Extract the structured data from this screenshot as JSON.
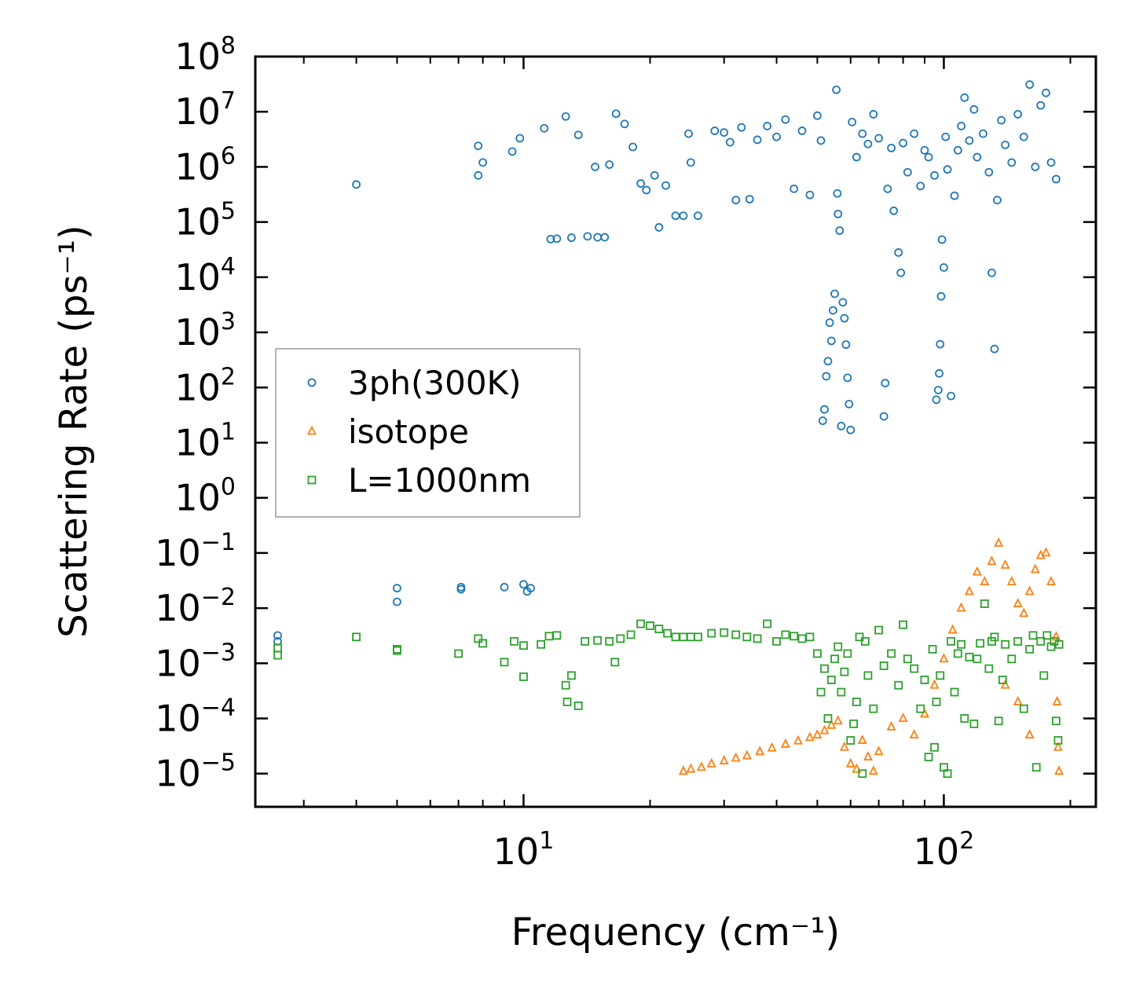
{
  "chart_data": {
    "type": "scatter",
    "xscale": "log",
    "yscale": "log",
    "xlim": [
      2.3,
      230
    ],
    "ylim": [
      2.5e-06,
      100000000
    ],
    "xlabel": "Frequency (cm⁻¹)",
    "ylabel": "Scattering Rate (ps⁻¹)",
    "xticks": [
      {
        "value": 10,
        "base": "10",
        "exp": "1"
      },
      {
        "value": 100,
        "base": "10",
        "exp": "2"
      }
    ],
    "yticks": [
      {
        "value": 1e-05,
        "base": "10",
        "exp": "−5"
      },
      {
        "value": 0.0001,
        "base": "10",
        "exp": "−4"
      },
      {
        "value": 0.001,
        "base": "10",
        "exp": "−3"
      },
      {
        "value": 0.01,
        "base": "10",
        "exp": "−2"
      },
      {
        "value": 0.1,
        "base": "10",
        "exp": "−1"
      },
      {
        "value": 1,
        "base": "10",
        "exp": "0"
      },
      {
        "value": 10,
        "base": "10",
        "exp": "1"
      },
      {
        "value": 100,
        "base": "10",
        "exp": "2"
      },
      {
        "value": 1000,
        "base": "10",
        "exp": "3"
      },
      {
        "value": 10000,
        "base": "10",
        "exp": "4"
      },
      {
        "value": 100000,
        "base": "10",
        "exp": "5"
      },
      {
        "value": 1000000,
        "base": "10",
        "exp": "6"
      },
      {
        "value": 10000000,
        "base": "10",
        "exp": "7"
      },
      {
        "value": 100000000,
        "base": "10",
        "exp": "8"
      }
    ],
    "legend": {
      "location": "center-left"
    },
    "series": [
      {
        "name": "3ph(300K)",
        "marker": "circle",
        "color": "#1f77b4",
        "points": [
          [
            2.6,
            0.0032
          ],
          [
            2.6,
            0.0025
          ],
          [
            4.0,
            480000
          ],
          [
            5.0,
            0.023
          ],
          [
            5.0,
            0.013
          ],
          [
            7.1,
            0.024
          ],
          [
            7.1,
            0.022
          ],
          [
            7.8,
            2400000
          ],
          [
            7.8,
            700000
          ],
          [
            8.0,
            1200000
          ],
          [
            9.0,
            0.024
          ],
          [
            9.4,
            1900000
          ],
          [
            9.8,
            3300000
          ],
          [
            10.0,
            0.027
          ],
          [
            10.2,
            0.02
          ],
          [
            10.4,
            0.023
          ],
          [
            11.2,
            5000000
          ],
          [
            11.6,
            49000
          ],
          [
            12.0,
            50000
          ],
          [
            12.6,
            8200000
          ],
          [
            13.0,
            52000
          ],
          [
            13.5,
            3800000
          ],
          [
            14.2,
            55000
          ],
          [
            14.8,
            1000000
          ],
          [
            15.0,
            53000
          ],
          [
            15.6,
            53000
          ],
          [
            16.0,
            1100000
          ],
          [
            16.6,
            9200000
          ],
          [
            17.4,
            6000000
          ],
          [
            18.2,
            2300000
          ],
          [
            19.0,
            500000
          ],
          [
            19.6,
            380000
          ],
          [
            20.5,
            700000
          ],
          [
            21.0,
            80000
          ],
          [
            21.8,
            460000
          ],
          [
            23.0,
            130000
          ],
          [
            24.0,
            130000
          ],
          [
            24.7,
            4000000
          ],
          [
            25.0,
            1200000
          ],
          [
            26.0,
            130000
          ],
          [
            28.5,
            4500000
          ],
          [
            30.0,
            4200000
          ],
          [
            31.0,
            2800000
          ],
          [
            32.0,
            250000
          ],
          [
            33.0,
            5200000
          ],
          [
            34.5,
            260000
          ],
          [
            36.0,
            3100000
          ],
          [
            38.0,
            5500000
          ],
          [
            40.0,
            3500000
          ],
          [
            42.0,
            7200000
          ],
          [
            44.0,
            400000
          ],
          [
            46.0,
            4500000
          ],
          [
            48.0,
            310000
          ],
          [
            50.0,
            8500000
          ],
          [
            51.0,
            3000000
          ],
          [
            51.5,
            25
          ],
          [
            52.0,
            40
          ],
          [
            52.5,
            160
          ],
          [
            53.0,
            300
          ],
          [
            53.5,
            1500
          ],
          [
            54.0,
            700
          ],
          [
            54.5,
            2500
          ],
          [
            55.0,
            5000
          ],
          [
            55.5,
            25000000
          ],
          [
            55.8,
            330000
          ],
          [
            56.0,
            140000
          ],
          [
            56.5,
            70000
          ],
          [
            57.0,
            20
          ],
          [
            57.5,
            3500
          ],
          [
            58.0,
            1800
          ],
          [
            58.5,
            600
          ],
          [
            59.0,
            150
          ],
          [
            59.5,
            50
          ],
          [
            60.0,
            17
          ],
          [
            60.5,
            6500000
          ],
          [
            62.0,
            1500000
          ],
          [
            64.0,
            4000000
          ],
          [
            66.0,
            2600000
          ],
          [
            68.0,
            9000000
          ],
          [
            70.0,
            3300000
          ],
          [
            72.0,
            30
          ],
          [
            72.5,
            120
          ],
          [
            73.5,
            400000
          ],
          [
            75.0,
            2200000
          ],
          [
            76.0,
            160000
          ],
          [
            78.0,
            28000
          ],
          [
            79.0,
            12000
          ],
          [
            80.0,
            2700000
          ],
          [
            82.0,
            800000
          ],
          [
            85.0,
            4000000
          ],
          [
            88.0,
            450000
          ],
          [
            90.0,
            2000000
          ],
          [
            92.0,
            1500000
          ],
          [
            95.0,
            700000
          ],
          [
            96.0,
            60
          ],
          [
            97.0,
            90
          ],
          [
            97.5,
            180
          ],
          [
            98.0,
            610
          ],
          [
            98.5,
            4500
          ],
          [
            99.0,
            48000
          ],
          [
            100.0,
            15000
          ],
          [
            101.0,
            3500000
          ],
          [
            102.0,
            900000
          ],
          [
            104.0,
            70
          ],
          [
            106.0,
            300000
          ],
          [
            108.0,
            2000000
          ],
          [
            110.0,
            5500000
          ],
          [
            112.0,
            18000000
          ],
          [
            115.0,
            3000000
          ],
          [
            118.0,
            11000000
          ],
          [
            120.0,
            1500000
          ],
          [
            124.0,
            4000000
          ],
          [
            128.0,
            800000
          ],
          [
            130.0,
            12000
          ],
          [
            132.0,
            500
          ],
          [
            134.0,
            250000
          ],
          [
            137.0,
            7000000
          ],
          [
            140.0,
            2500000
          ],
          [
            145.0,
            1200000
          ],
          [
            150.0,
            9000000
          ],
          [
            155.0,
            3500000
          ],
          [
            160.0,
            31000000
          ],
          [
            165.0,
            1000000
          ],
          [
            170.0,
            13000000
          ],
          [
            175.0,
            22000000
          ],
          [
            180.0,
            1200000
          ],
          [
            185.0,
            600000
          ]
        ]
      },
      {
        "name": "isotope",
        "marker": "triangle",
        "color": "#ff7f0e",
        "points": [
          [
            24.0,
            1.1e-05
          ],
          [
            25.0,
            1.2e-05
          ],
          [
            26.5,
            1.3e-05
          ],
          [
            28.0,
            1.5e-05
          ],
          [
            30.0,
            1.7e-05
          ],
          [
            32.0,
            1.9e-05
          ],
          [
            34.0,
            2.1e-05
          ],
          [
            36.5,
            2.5e-05
          ],
          [
            39.0,
            2.9e-05
          ],
          [
            42.0,
            3.4e-05
          ],
          [
            45.0,
            3.9e-05
          ],
          [
            48.0,
            4.5e-05
          ],
          [
            50.0,
            5e-05
          ],
          [
            52.0,
            6e-05
          ],
          [
            54.0,
            7.5e-05
          ],
          [
            56.0,
            9e-05
          ],
          [
            58.0,
            3e-05
          ],
          [
            60.0,
            1.5e-05
          ],
          [
            62.0,
            1.2e-05
          ],
          [
            64.0,
            4e-05
          ],
          [
            66.0,
            2e-05
          ],
          [
            68.0,
            1.1e-05
          ],
          [
            70.0,
            2.5e-05
          ],
          [
            75.0,
            7e-05
          ],
          [
            80.0,
            0.0001
          ],
          [
            85.0,
            5e-05
          ],
          [
            90.0,
            0.00012
          ],
          [
            95.0,
            0.0004
          ],
          [
            100.0,
            0.0012
          ],
          [
            105.0,
            0.004
          ],
          [
            110.0,
            0.01
          ],
          [
            115.0,
            0.02
          ],
          [
            120.0,
            0.045
          ],
          [
            125.0,
            0.03
          ],
          [
            130.0,
            0.07
          ],
          [
            135.0,
            0.15
          ],
          [
            140.0,
            0.06
          ],
          [
            145.0,
            0.03
          ],
          [
            150.0,
            0.012
          ],
          [
            155.0,
            0.008
          ],
          [
            160.0,
            0.02
          ],
          [
            165.0,
            0.05
          ],
          [
            170.0,
            0.09
          ],
          [
            175.0,
            0.1
          ],
          [
            180.0,
            0.03
          ],
          [
            185.0,
            0.003
          ],
          [
            186.0,
            0.0002
          ],
          [
            187.0,
            3e-05
          ],
          [
            188.0,
            1.1e-05
          ],
          [
            140.0,
            0.0004
          ],
          [
            150.0,
            0.0002
          ],
          [
            160.0,
            5e-05
          ]
        ]
      },
      {
        "name": "L=1000nm",
        "marker": "square",
        "color": "#2ca02c",
        "points": [
          [
            2.6,
            0.0019
          ],
          [
            2.6,
            0.0014
          ],
          [
            4.0,
            0.003
          ],
          [
            5.0,
            0.0018
          ],
          [
            5.0,
            0.0017
          ],
          [
            7.0,
            0.0015
          ],
          [
            7.8,
            0.0028
          ],
          [
            8.0,
            0.0023
          ],
          [
            9.0,
            0.00105
          ],
          [
            9.5,
            0.0025
          ],
          [
            10.0,
            0.0021
          ],
          [
            10.0,
            0.00057
          ],
          [
            11.0,
            0.0022
          ],
          [
            11.5,
            0.0031
          ],
          [
            12.0,
            0.0032
          ],
          [
            12.6,
            0.0004
          ],
          [
            12.7,
            0.0002
          ],
          [
            13.0,
            0.0006
          ],
          [
            13.5,
            0.00017
          ],
          [
            14.0,
            0.0025
          ],
          [
            15.0,
            0.0026
          ],
          [
            16.0,
            0.0025
          ],
          [
            16.5,
            0.00105
          ],
          [
            17.0,
            0.0028
          ],
          [
            18.0,
            0.0033
          ],
          [
            19.0,
            0.0052
          ],
          [
            20.0,
            0.0048
          ],
          [
            21.0,
            0.0042
          ],
          [
            22.0,
            0.0035
          ],
          [
            23.0,
            0.003
          ],
          [
            24.0,
            0.003
          ],
          [
            25.0,
            0.003
          ],
          [
            26.0,
            0.003
          ],
          [
            28.0,
            0.0035
          ],
          [
            30.0,
            0.0036
          ],
          [
            32.0,
            0.0033
          ],
          [
            34.0,
            0.003
          ],
          [
            36.0,
            0.0028
          ],
          [
            38.0,
            0.0052
          ],
          [
            40.0,
            0.0025
          ],
          [
            42.0,
            0.0033
          ],
          [
            44.0,
            0.0031
          ],
          [
            46.0,
            0.0028
          ],
          [
            48.0,
            0.003
          ],
          [
            50.0,
            0.0015
          ],
          [
            51.0,
            0.0003
          ],
          [
            52.0,
            0.0008
          ],
          [
            53.0,
            0.0001
          ],
          [
            54.0,
            0.0005
          ],
          [
            55.0,
            0.0012
          ],
          [
            56.0,
            0.002
          ],
          [
            57.0,
            0.0003
          ],
          [
            58.0,
            0.0007
          ],
          [
            59.0,
            0.0015
          ],
          [
            60.0,
            4e-05
          ],
          [
            61.0,
            8e-05
          ],
          [
            62.0,
            0.0002
          ],
          [
            63.0,
            0.003
          ],
          [
            64.0,
            1e-05
          ],
          [
            65.0,
            0.0025
          ],
          [
            66.0,
            0.0006
          ],
          [
            68.0,
            0.00015
          ],
          [
            70.0,
            0.004
          ],
          [
            72.0,
            0.0009
          ],
          [
            75.0,
            0.0015
          ],
          [
            78.0,
            0.0004
          ],
          [
            80.0,
            0.005
          ],
          [
            82.0,
            0.0012
          ],
          [
            85.0,
            0.0008
          ],
          [
            88.0,
            0.00015
          ],
          [
            90.0,
            0.0005
          ],
          [
            92.0,
            2e-05
          ],
          [
            94.0,
            0.0018
          ],
          [
            95.0,
            3e-05
          ],
          [
            96.0,
            0.0002
          ],
          [
            98.0,
            0.0006
          ],
          [
            100.0,
            1.3e-05
          ],
          [
            102.0,
            1e-05
          ],
          [
            104.0,
            0.0025
          ],
          [
            106.0,
            0.0003
          ],
          [
            108.0,
            0.0015
          ],
          [
            110.0,
            0.0022
          ],
          [
            112.0,
            0.0001
          ],
          [
            115.0,
            0.0013
          ],
          [
            118.0,
            8e-05
          ],
          [
            120.0,
            0.0012
          ],
          [
            122.0,
            0.0023
          ],
          [
            125.0,
            0.012
          ],
          [
            128.0,
            0.0008
          ],
          [
            130.0,
            0.0025
          ],
          [
            132.0,
            0.003
          ],
          [
            135.0,
            9e-05
          ],
          [
            138.0,
            0.0005
          ],
          [
            140.0,
            0.0022
          ],
          [
            145.0,
            0.0012
          ],
          [
            150.0,
            0.0025
          ],
          [
            155.0,
            0.00015
          ],
          [
            160.0,
            0.0018
          ],
          [
            163.0,
            0.0032
          ],
          [
            166.0,
            1.3e-05
          ],
          [
            170.0,
            0.0025
          ],
          [
            173.0,
            0.0006
          ],
          [
            176.0,
            0.0032
          ],
          [
            180.0,
            0.002
          ],
          [
            183.0,
            0.0025
          ],
          [
            185.0,
            9e-05
          ],
          [
            187.0,
            4e-05
          ],
          [
            188.0,
            0.0022
          ]
        ]
      }
    ]
  }
}
